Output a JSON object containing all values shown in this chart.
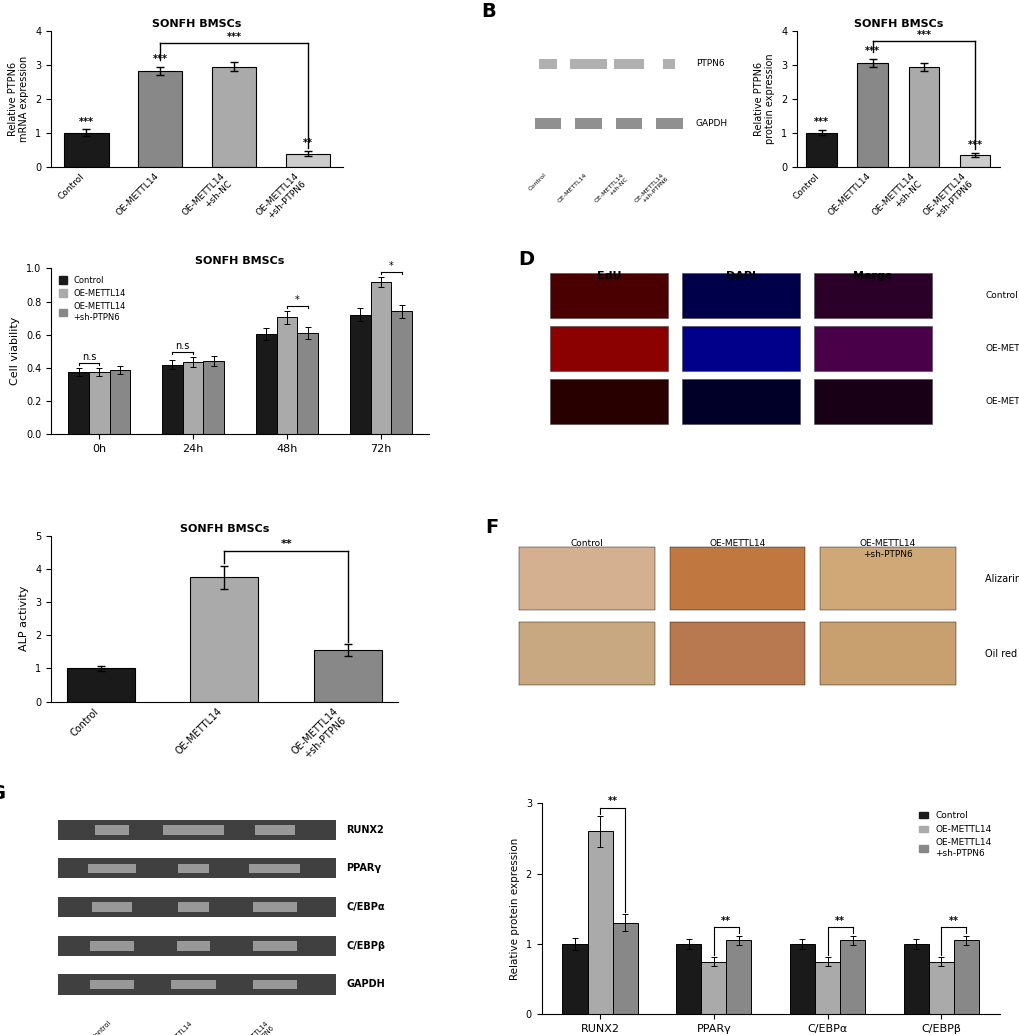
{
  "panel_A": {
    "title": "SONFH BMSCs",
    "categories": [
      "Control",
      "OE-METTL14",
      "OE-METTL14\n+sh-NC",
      "OE-METTL14\n+sh-PTPN6"
    ],
    "values": [
      1.0,
      2.82,
      2.95,
      0.38
    ],
    "errors": [
      0.1,
      0.12,
      0.13,
      0.08
    ],
    "colors": [
      "#1a1a1a",
      "#888888",
      "#aaaaaa",
      "#cccccc"
    ],
    "ylabel": "Relative PTPN6\nmRNA expression",
    "ylim": [
      0,
      4
    ],
    "yticks": [
      0,
      1,
      2,
      3,
      4
    ],
    "sig_above": [
      "***",
      "***",
      "",
      "**"
    ],
    "bracket_from": 1,
    "bracket_to": 3,
    "bracket_sig": "***"
  },
  "panel_B_bar": {
    "title": "SONFH BMSCs",
    "categories": [
      "Control",
      "OE-METTL14",
      "OE-METTL14\n+sh-NC",
      "OE-METTL14\n+sh-PTPN6"
    ],
    "values": [
      1.0,
      3.05,
      2.95,
      0.35
    ],
    "errors": [
      0.08,
      0.12,
      0.12,
      0.06
    ],
    "colors": [
      "#1a1a1a",
      "#888888",
      "#aaaaaa",
      "#cccccc"
    ],
    "ylabel": "Relative PTPN6\nprotein expression",
    "ylim": [
      0,
      4
    ],
    "yticks": [
      0,
      1,
      2,
      3,
      4
    ],
    "sig_above": [
      "***",
      "***",
      "",
      "***"
    ],
    "bracket_from": 1,
    "bracket_to": 3,
    "bracket_sig": "***"
  },
  "panel_C": {
    "title": "SONFH BMSCs",
    "timepoints": [
      "0h",
      "24h",
      "48h",
      "72h"
    ],
    "control": [
      0.375,
      0.42,
      0.605,
      0.72
    ],
    "oe_mettl14": [
      0.375,
      0.435,
      0.705,
      0.92
    ],
    "oe_sh_ptpn6": [
      0.385,
      0.44,
      0.61,
      0.74
    ],
    "control_err": [
      0.025,
      0.03,
      0.035,
      0.04
    ],
    "oe_mettl14_err": [
      0.025,
      0.03,
      0.04,
      0.03
    ],
    "oe_sh_ptpn6_err": [
      0.025,
      0.03,
      0.035,
      0.04
    ],
    "ylabel": "Cell viability",
    "ylim": [
      0.0,
      1.0
    ],
    "yticks": [
      0.0,
      0.2,
      0.4,
      0.6,
      0.8,
      1.0
    ],
    "sigs": [
      "n.s",
      "n.s",
      "*",
      "*"
    ]
  },
  "panel_E": {
    "title": "SONFH BMSCs",
    "categories": [
      "Control",
      "OE-METTL14",
      "OE-METTL14\n+sh-PTPN6"
    ],
    "values": [
      1.0,
      3.75,
      1.55
    ],
    "errors": [
      0.08,
      0.35,
      0.18
    ],
    "colors": [
      "#1a1a1a",
      "#aaaaaa",
      "#888888"
    ],
    "ylabel": "ALP activity",
    "ylim": [
      0,
      5
    ],
    "yticks": [
      0,
      1,
      2,
      3,
      4,
      5
    ],
    "bracket_from": 1,
    "bracket_to": 2,
    "bracket_sig": "**"
  },
  "panel_G_bar": {
    "categories": [
      "RUNX2",
      "PPARγ",
      "C/EBPα",
      "C/EBPβ"
    ],
    "control": [
      1.0,
      1.0,
      1.0,
      1.0
    ],
    "oe_mettl14": [
      2.6,
      0.75,
      0.75,
      0.75
    ],
    "oe_sh_ptpn6": [
      1.3,
      1.05,
      1.05,
      1.05
    ],
    "control_err": [
      0.08,
      0.07,
      0.07,
      0.07
    ],
    "oe_mettl14_err": [
      0.22,
      0.07,
      0.07,
      0.07
    ],
    "oe_sh_ptpn6_err": [
      0.12,
      0.07,
      0.07,
      0.07
    ],
    "ylabel": "Relative protein expression",
    "ylim": [
      0,
      3
    ],
    "yticks": [
      0,
      1,
      2,
      3
    ],
    "sig": [
      "**",
      "**",
      "**",
      "**"
    ]
  },
  "colors": {
    "black": "#1a1a1a",
    "gray_light": "#aaaaaa",
    "gray_mid": "#888888",
    "white": "#ffffff"
  }
}
